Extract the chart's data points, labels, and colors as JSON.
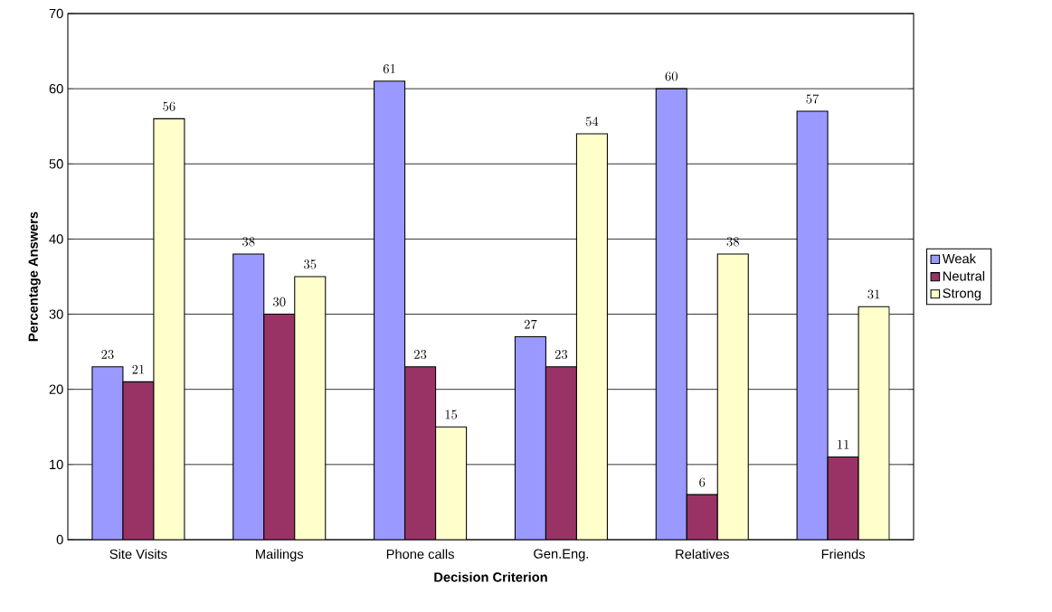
{
  "chart_data": {
    "type": "bar",
    "xlabel": "Decision Criterion",
    "ylabel": "Percentage Answers",
    "categories": [
      "Site Visits",
      "Mailings",
      "Phone calls",
      "Gen.Eng.",
      "Relatives",
      "Friends"
    ],
    "series": [
      {
        "name": "Weak",
        "color": "#9999ff",
        "values": [
          23,
          38,
          61,
          27,
          60,
          57
        ]
      },
      {
        "name": "Neutral",
        "color": "#993366",
        "values": [
          21,
          30,
          23,
          23,
          6,
          11
        ]
      },
      {
        "name": "Strong",
        "color": "#ffffcc",
        "values": [
          56,
          35,
          15,
          54,
          38,
          31
        ]
      }
    ],
    "ylim": [
      0,
      70
    ],
    "yticks": [
      0,
      10,
      20,
      30,
      40,
      50,
      60,
      70
    ],
    "grid": "y",
    "legend": "right",
    "data_labels": true
  }
}
